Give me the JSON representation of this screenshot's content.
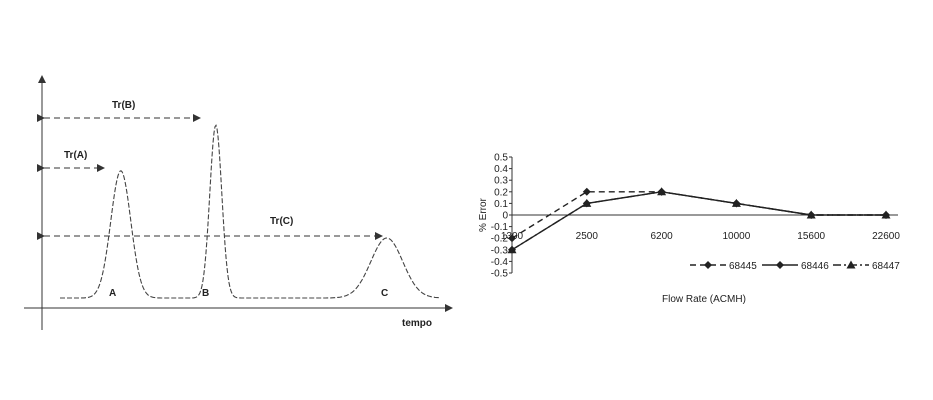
{
  "chart_data": [
    {
      "type": "line",
      "title": "",
      "xlabel": "tempo",
      "ylabel": "",
      "annotations": {
        "tr_a": "Tr(A)",
        "tr_b": "Tr(B)",
        "tr_c": "Tr(C)"
      },
      "peaks": [
        {
          "name": "A",
          "retention_fraction": 0.16,
          "height_fraction": 0.53
        },
        {
          "name": "B",
          "retention_fraction": 0.41,
          "height_fraction": 0.72
        },
        {
          "name": "C",
          "retention_fraction": 0.86,
          "height_fraction": 0.25
        }
      ]
    },
    {
      "type": "line",
      "title": "",
      "xlabel": "Flow Rate (ACMH)",
      "ylabel": "% Error",
      "categories": [
        "1300",
        "2500",
        "6200",
        "10000",
        "15600",
        "22600"
      ],
      "ylim": [
        -0.5,
        0.5
      ],
      "yticks": [
        "0.5",
        "0.4",
        "0.3",
        "0.2",
        "0.1",
        "0",
        "-0.1",
        "-0.2",
        "-0.3",
        "-0.4",
        "-0.5"
      ],
      "legend_position": "bottom",
      "series": [
        {
          "name": "68445",
          "values": [
            -0.2,
            0.2,
            0.2,
            0.1,
            0.0,
            0.0
          ],
          "style": "dashed",
          "marker": "diamond"
        },
        {
          "name": "68446",
          "values": [
            -0.3,
            0.1,
            0.2,
            0.1,
            0.0,
            0.0
          ],
          "style": "solid",
          "marker": "diamond"
        },
        {
          "name": "68447",
          "values": [
            -0.3,
            0.1,
            0.2,
            0.1,
            0.0,
            0.0
          ],
          "style": "dashdot",
          "marker": "triangle"
        }
      ]
    }
  ]
}
